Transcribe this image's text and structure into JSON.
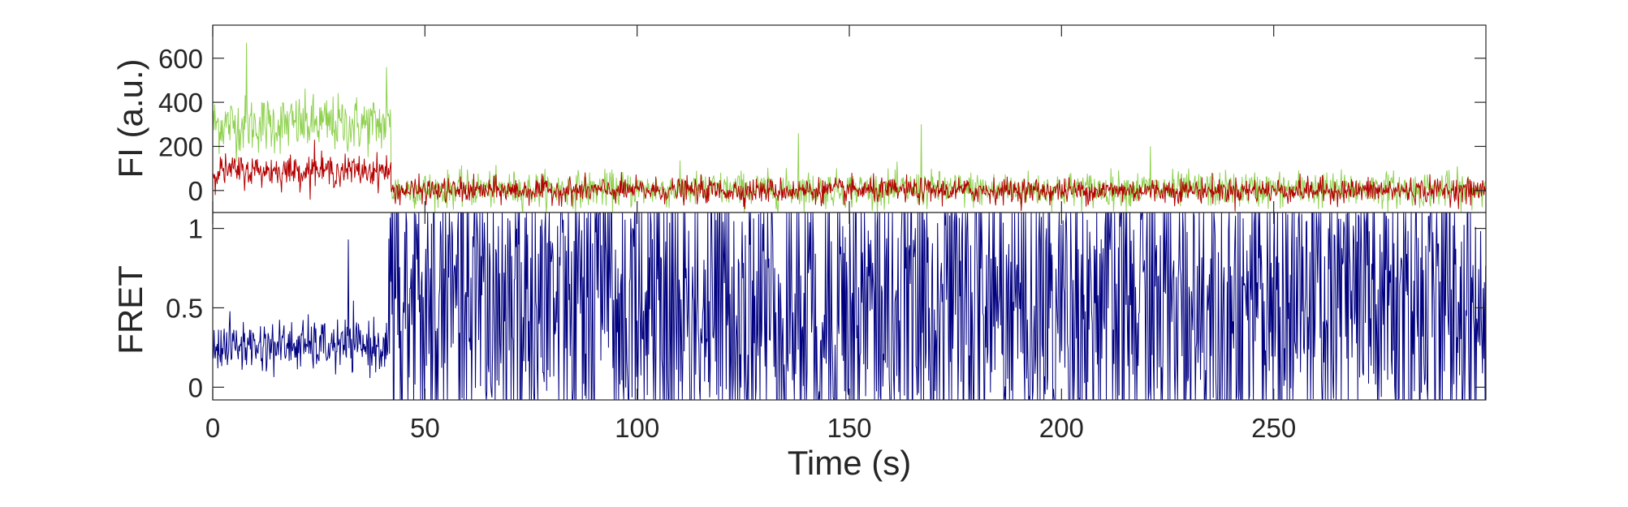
{
  "chart_data": [
    {
      "type": "line",
      "panel": "fluorescence",
      "title": "",
      "xlabel": "",
      "ylabel": "FI (a.u.)",
      "xlim": [
        0,
        300
      ],
      "ylim": [
        -100,
        750
      ],
      "xticks": [
        0,
        50,
        100,
        150,
        200,
        250
      ],
      "yticks": [
        0,
        200,
        400,
        600
      ],
      "ytick_labels": [
        "0",
        "200",
        "400",
        "600"
      ],
      "grid": false,
      "legend": "none",
      "series": [
        {
          "color": "#8fd14f",
          "segments": [
            {
              "x_start": 0,
              "x_end": 42,
              "mean": 300,
              "noise": 65
            },
            {
              "x_start": 42,
              "x_end": 300,
              "mean": 5,
              "noise": 40
            }
          ],
          "spikes": [
            {
              "x": 8,
              "y": 670
            },
            {
              "x": 41,
              "y": 560
            },
            {
              "x": 138,
              "y": 260
            },
            {
              "x": 167,
              "y": 300
            },
            {
              "x": 221,
              "y": 200
            }
          ]
        },
        {
          "color": "#b30000",
          "segments": [
            {
              "x_start": 0,
              "x_end": 42,
              "mean": 90,
              "noise": 35
            },
            {
              "x_start": 42,
              "x_end": 300,
              "mean": 0,
              "noise": 28
            }
          ],
          "spikes": [
            {
              "x": 24,
              "y": 230
            }
          ]
        }
      ]
    },
    {
      "type": "line",
      "panel": "fret",
      "title": "",
      "xlabel": "Time (s)",
      "ylabel": "FRET",
      "xlim": [
        0,
        300
      ],
      "ylim": [
        -0.08,
        1.1
      ],
      "xticks": [
        0,
        50,
        100,
        150,
        200,
        250
      ],
      "xtick_labels": [
        "0",
        "50",
        "100",
        "150",
        "200",
        "250"
      ],
      "yticks": [
        0,
        0.5,
        1
      ],
      "ytick_labels": [
        "0",
        "0.5",
        "1"
      ],
      "grid": false,
      "legend": "none",
      "series": [
        {
          "color": "#000080",
          "segments": [
            {
              "x_start": 0,
              "x_end": 41.5,
              "mean": 0.26,
              "noise": 0.08
            },
            {
              "x_start": 41.5,
              "x_end": 300,
              "mean": 0.5,
              "noise": 0.6,
              "clip": [
                -0.08,
                1.1
              ]
            }
          ],
          "spikes": [
            {
              "x": 32,
              "y": 0.93
            }
          ]
        }
      ]
    }
  ]
}
